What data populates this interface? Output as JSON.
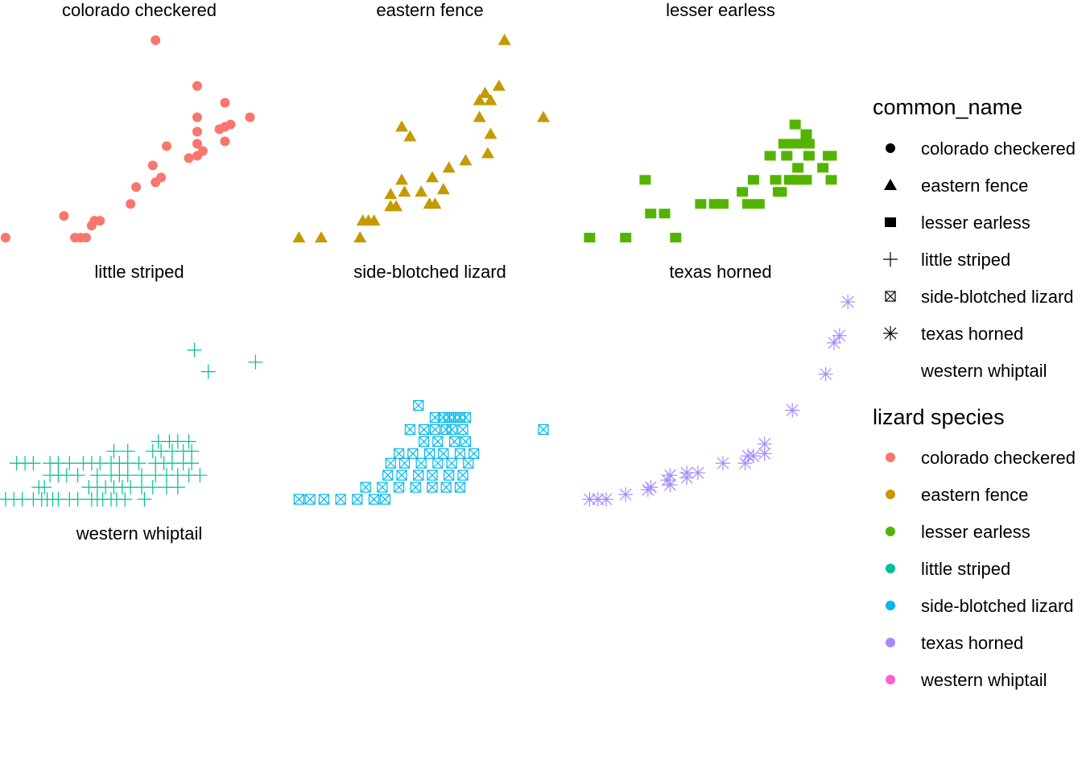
{
  "chart_data": {
    "type": "scatter",
    "facet_by": "common_name",
    "facets": [
      {
        "title": "colorado checkered",
        "color": "#F8766D",
        "shape": "circle",
        "points": [
          [
            0.02,
            0.1
          ],
          [
            0.27,
            0.1
          ],
          [
            0.29,
            0.1
          ],
          [
            0.31,
            0.1
          ],
          [
            0.33,
            0.15
          ],
          [
            0.34,
            0.17
          ],
          [
            0.36,
            0.17
          ],
          [
            0.23,
            0.19
          ],
          [
            0.47,
            0.24
          ],
          [
            0.49,
            0.31
          ],
          [
            0.56,
            0.33
          ],
          [
            0.58,
            0.35
          ],
          [
            0.55,
            0.4
          ],
          [
            0.68,
            0.43
          ],
          [
            0.71,
            0.44
          ],
          [
            0.73,
            0.46
          ],
          [
            0.6,
            0.48
          ],
          [
            0.71,
            0.49
          ],
          [
            0.81,
            0.5
          ],
          [
            0.71,
            0.54
          ],
          [
            0.79,
            0.55
          ],
          [
            0.81,
            0.56
          ],
          [
            0.83,
            0.57
          ],
          [
            0.71,
            0.6
          ],
          [
            0.9,
            0.6
          ],
          [
            0.81,
            0.66
          ],
          [
            0.71,
            0.73
          ],
          [
            0.56,
            0.92
          ]
        ]
      },
      {
        "title": "eastern fence",
        "color": "#C49A00",
        "shape": "triangle",
        "points": [
          [
            0.03,
            0.1
          ],
          [
            0.11,
            0.1
          ],
          [
            0.25,
            0.1
          ],
          [
            0.26,
            0.17
          ],
          [
            0.28,
            0.17
          ],
          [
            0.3,
            0.17
          ],
          [
            0.36,
            0.23
          ],
          [
            0.38,
            0.23
          ],
          [
            0.5,
            0.24
          ],
          [
            0.52,
            0.24
          ],
          [
            0.36,
            0.28
          ],
          [
            0.41,
            0.29
          ],
          [
            0.47,
            0.29
          ],
          [
            0.55,
            0.3
          ],
          [
            0.4,
            0.34
          ],
          [
            0.51,
            0.35
          ],
          [
            0.57,
            0.39
          ],
          [
            0.63,
            0.42
          ],
          [
            0.71,
            0.45
          ],
          [
            0.43,
            0.52
          ],
          [
            0.4,
            0.56
          ],
          [
            0.72,
            0.53
          ],
          [
            0.68,
            0.6
          ],
          [
            0.91,
            0.6
          ],
          [
            0.68,
            0.67
          ],
          [
            0.72,
            0.67
          ],
          [
            0.7,
            0.7
          ],
          [
            0.75,
            0.73
          ],
          [
            0.77,
            0.92
          ]
        ]
      },
      {
        "title": "lesser earless",
        "color": "#53B400",
        "shape": "square",
        "points": [
          [
            0.03,
            0.1
          ],
          [
            0.16,
            0.1
          ],
          [
            0.34,
            0.1
          ],
          [
            0.25,
            0.2
          ],
          [
            0.3,
            0.2
          ],
          [
            0.43,
            0.24
          ],
          [
            0.48,
            0.24
          ],
          [
            0.51,
            0.24
          ],
          [
            0.6,
            0.24
          ],
          [
            0.64,
            0.24
          ],
          [
            0.58,
            0.29
          ],
          [
            0.71,
            0.29
          ],
          [
            0.72,
            0.29
          ],
          [
            0.7,
            0.34
          ],
          [
            0.78,
            0.34
          ],
          [
            0.62,
            0.34
          ],
          [
            0.75,
            0.34
          ],
          [
            0.76,
            0.34
          ],
          [
            0.8,
            0.34
          ],
          [
            0.81,
            0.34
          ],
          [
            0.9,
            0.34
          ],
          [
            0.23,
            0.34
          ],
          [
            0.78,
            0.39
          ],
          [
            0.87,
            0.39
          ],
          [
            0.68,
            0.44
          ],
          [
            0.74,
            0.44
          ],
          [
            0.82,
            0.44
          ],
          [
            0.89,
            0.44
          ],
          [
            0.9,
            0.44
          ],
          [
            0.73,
            0.49
          ],
          [
            0.77,
            0.49
          ],
          [
            0.79,
            0.49
          ],
          [
            0.82,
            0.49
          ],
          [
            0.81,
            0.53
          ],
          [
            0.77,
            0.57
          ]
        ]
      },
      {
        "title": "little striped",
        "color": "#00C094",
        "shape": "plus",
        "points": [
          [
            0.02,
            0.1
          ],
          [
            0.05,
            0.1
          ],
          [
            0.08,
            0.1
          ],
          [
            0.12,
            0.1
          ],
          [
            0.15,
            0.1
          ],
          [
            0.17,
            0.1
          ],
          [
            0.19,
            0.1
          ],
          [
            0.21,
            0.1
          ],
          [
            0.25,
            0.1
          ],
          [
            0.28,
            0.1
          ],
          [
            0.33,
            0.1
          ],
          [
            0.35,
            0.1
          ],
          [
            0.37,
            0.1
          ],
          [
            0.4,
            0.1
          ],
          [
            0.42,
            0.1
          ],
          [
            0.45,
            0.1
          ],
          [
            0.52,
            0.1
          ],
          [
            0.14,
            0.15
          ],
          [
            0.16,
            0.15
          ],
          [
            0.32,
            0.15
          ],
          [
            0.35,
            0.15
          ],
          [
            0.38,
            0.15
          ],
          [
            0.41,
            0.15
          ],
          [
            0.44,
            0.15
          ],
          [
            0.47,
            0.15
          ],
          [
            0.51,
            0.15
          ],
          [
            0.55,
            0.15
          ],
          [
            0.6,
            0.15
          ],
          [
            0.64,
            0.15
          ],
          [
            0.18,
            0.2
          ],
          [
            0.21,
            0.2
          ],
          [
            0.24,
            0.2
          ],
          [
            0.28,
            0.2
          ],
          [
            0.35,
            0.2
          ],
          [
            0.4,
            0.2
          ],
          [
            0.43,
            0.2
          ],
          [
            0.46,
            0.2
          ],
          [
            0.51,
            0.2
          ],
          [
            0.56,
            0.2
          ],
          [
            0.6,
            0.2
          ],
          [
            0.64,
            0.2
          ],
          [
            0.68,
            0.2
          ],
          [
            0.72,
            0.2
          ],
          [
            0.06,
            0.25
          ],
          [
            0.09,
            0.25
          ],
          [
            0.12,
            0.25
          ],
          [
            0.18,
            0.25
          ],
          [
            0.21,
            0.25
          ],
          [
            0.25,
            0.25
          ],
          [
            0.3,
            0.25
          ],
          [
            0.33,
            0.25
          ],
          [
            0.36,
            0.25
          ],
          [
            0.4,
            0.25
          ],
          [
            0.43,
            0.25
          ],
          [
            0.46,
            0.25
          ],
          [
            0.5,
            0.25
          ],
          [
            0.56,
            0.25
          ],
          [
            0.59,
            0.25
          ],
          [
            0.62,
            0.25
          ],
          [
            0.66,
            0.25
          ],
          [
            0.69,
            0.25
          ],
          [
            0.41,
            0.3
          ],
          [
            0.46,
            0.3
          ],
          [
            0.55,
            0.3
          ],
          [
            0.58,
            0.3
          ],
          [
            0.62,
            0.3
          ],
          [
            0.66,
            0.3
          ],
          [
            0.69,
            0.3
          ],
          [
            0.57,
            0.34
          ],
          [
            0.61,
            0.34
          ],
          [
            0.64,
            0.34
          ],
          [
            0.68,
            0.34
          ],
          [
            0.75,
            0.63
          ],
          [
            0.92,
            0.67
          ],
          [
            0.7,
            0.72
          ]
        ]
      },
      {
        "title": "side-blotched lizard",
        "color": "#00B6EB",
        "shape": "square-cross",
        "points": [
          [
            0.03,
            0.1
          ],
          [
            0.07,
            0.1
          ],
          [
            0.12,
            0.1
          ],
          [
            0.18,
            0.1
          ],
          [
            0.24,
            0.1
          ],
          [
            0.3,
            0.1
          ],
          [
            0.34,
            0.1
          ],
          [
            0.27,
            0.15
          ],
          [
            0.33,
            0.15
          ],
          [
            0.39,
            0.15
          ],
          [
            0.45,
            0.15
          ],
          [
            0.51,
            0.15
          ],
          [
            0.56,
            0.15
          ],
          [
            0.61,
            0.15
          ],
          [
            0.35,
            0.2
          ],
          [
            0.4,
            0.2
          ],
          [
            0.46,
            0.2
          ],
          [
            0.51,
            0.2
          ],
          [
            0.57,
            0.2
          ],
          [
            0.62,
            0.2
          ],
          [
            0.36,
            0.25
          ],
          [
            0.41,
            0.25
          ],
          [
            0.47,
            0.25
          ],
          [
            0.53,
            0.25
          ],
          [
            0.58,
            0.25
          ],
          [
            0.64,
            0.25
          ],
          [
            0.39,
            0.29
          ],
          [
            0.44,
            0.29
          ],
          [
            0.5,
            0.29
          ],
          [
            0.55,
            0.29
          ],
          [
            0.61,
            0.29
          ],
          [
            0.66,
            0.29
          ],
          [
            0.48,
            0.34
          ],
          [
            0.53,
            0.34
          ],
          [
            0.59,
            0.34
          ],
          [
            0.63,
            0.34
          ],
          [
            0.91,
            0.39
          ],
          [
            0.43,
            0.39
          ],
          [
            0.48,
            0.39
          ],
          [
            0.52,
            0.39
          ],
          [
            0.56,
            0.39
          ],
          [
            0.58,
            0.39
          ],
          [
            0.62,
            0.39
          ],
          [
            0.52,
            0.44
          ],
          [
            0.55,
            0.44
          ],
          [
            0.57,
            0.44
          ],
          [
            0.59,
            0.44
          ],
          [
            0.61,
            0.44
          ],
          [
            0.63,
            0.44
          ],
          [
            0.46,
            0.49
          ]
        ]
      },
      {
        "title": "texas horned",
        "color": "#A58AFF",
        "shape": "asterisk",
        "points": [
          [
            0.03,
            0.1
          ],
          [
            0.06,
            0.1
          ],
          [
            0.09,
            0.1
          ],
          [
            0.16,
            0.12
          ],
          [
            0.24,
            0.14
          ],
          [
            0.25,
            0.15
          ],
          [
            0.32,
            0.16
          ],
          [
            0.31,
            0.18
          ],
          [
            0.32,
            0.2
          ],
          [
            0.38,
            0.19
          ],
          [
            0.38,
            0.21
          ],
          [
            0.42,
            0.21
          ],
          [
            0.51,
            0.25
          ],
          [
            0.59,
            0.25
          ],
          [
            0.6,
            0.28
          ],
          [
            0.62,
            0.28
          ],
          [
            0.66,
            0.29
          ],
          [
            0.66,
            0.33
          ],
          [
            0.76,
            0.47
          ],
          [
            0.88,
            0.62
          ],
          [
            0.91,
            0.75
          ],
          [
            0.93,
            0.78
          ],
          [
            0.96,
            0.92
          ]
        ]
      },
      {
        "title": "western whiptail",
        "color": "#FB61D7",
        "shape": "none",
        "points": []
      }
    ],
    "legend_shape": {
      "title": "common_name",
      "entries": [
        {
          "label": "colorado checkered",
          "shape": "circle"
        },
        {
          "label": "eastern fence",
          "shape": "triangle"
        },
        {
          "label": "lesser earless",
          "shape": "square"
        },
        {
          "label": "little striped",
          "shape": "plus"
        },
        {
          "label": "side-blotched lizard",
          "shape": "square-cross"
        },
        {
          "label": "texas horned",
          "shape": "asterisk"
        },
        {
          "label": "western whiptail",
          "shape": "none"
        }
      ]
    },
    "legend_color": {
      "title": "lizard species",
      "entries": [
        {
          "label": "colorado checkered",
          "color": "#F8766D"
        },
        {
          "label": "eastern fence",
          "color": "#C49A00"
        },
        {
          "label": "lesser earless",
          "color": "#53B400"
        },
        {
          "label": "little striped",
          "color": "#00C094"
        },
        {
          "label": "side-blotched lizard",
          "color": "#00B6EB"
        },
        {
          "label": "texas horned",
          "color": "#A58AFF"
        },
        {
          "label": "western whiptail",
          "color": "#FB61D7"
        }
      ]
    },
    "legend_position": "right",
    "axes": "none",
    "grid": false
  }
}
